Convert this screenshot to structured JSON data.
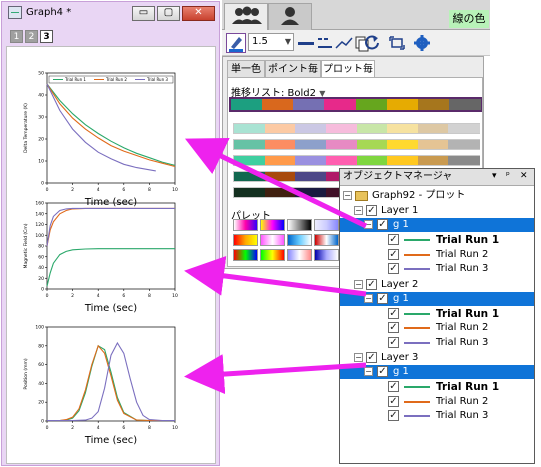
{
  "graph_window": {
    "title": "Graph4 *",
    "buttons": {
      "minimize": "▭",
      "maximize": "▢",
      "close": "✕"
    },
    "layer_tabs": [
      "1",
      "2",
      "3"
    ],
    "active_layer_tab": "3"
  },
  "chart_data": [
    {
      "type": "line",
      "title": "",
      "xlabel": "Time (sec)",
      "ylabel": "Delta Temperature (K)",
      "xlim": [
        0,
        10
      ],
      "ylim": [
        0,
        50
      ],
      "xticks": [
        "0",
        "2",
        "4",
        "6",
        "8",
        "10"
      ],
      "yticks": [
        "0",
        "10",
        "20",
        "30",
        "40",
        "50"
      ],
      "legend": {
        "position": "top",
        "entries": [
          "Trial Run 1",
          "Trial Run 2",
          "Trial Run 3"
        ]
      },
      "series": [
        {
          "name": "Trial Run 1",
          "color": "#2aa86a",
          "x": [
            0,
            1,
            2,
            3,
            4,
            5,
            6,
            7,
            8,
            9,
            10
          ],
          "values": [
            45,
            37.5,
            31.5,
            26.5,
            22.5,
            19,
            16,
            13.5,
            11.5,
            9.5,
            8
          ]
        },
        {
          "name": "Trial Run 2",
          "color": "#e06a1a",
          "x": [
            0,
            1,
            2,
            3,
            4,
            5,
            6,
            7,
            8,
            9,
            10
          ],
          "values": [
            45,
            36,
            29.5,
            24.5,
            20.5,
            17,
            14.5,
            12.5,
            10.5,
            9,
            7.5
          ]
        },
        {
          "name": "Trial Run 3",
          "color": "#7b6fbf",
          "x": [
            0,
            1,
            2,
            3,
            4,
            5,
            6,
            7,
            8,
            8.5
          ],
          "values": [
            45,
            33,
            24.5,
            18.5,
            14,
            11,
            8.5,
            7,
            6,
            5.5
          ]
        }
      ]
    },
    {
      "type": "line",
      "title": "",
      "xlabel": "Time (sec)",
      "ylabel": "Magnetic Field (Cm)",
      "xlim": [
        0,
        10
      ],
      "ylim": [
        0,
        160
      ],
      "xticks": [
        "0",
        "2",
        "4",
        "6",
        "8",
        "10"
      ],
      "yticks": [
        "0",
        "20",
        "40",
        "60",
        "80",
        "100",
        "120",
        "140",
        "160"
      ],
      "series": [
        {
          "name": "Trial Run 1",
          "color": "#2aa86a",
          "x": [
            0,
            0.25,
            0.5,
            1,
            1.5,
            2,
            3,
            4,
            6,
            8,
            10
          ],
          "values": [
            5,
            30,
            48,
            64,
            70,
            73,
            74.5,
            75,
            75,
            75,
            75
          ]
        },
        {
          "name": "Trial Run 2",
          "color": "#e06a1a",
          "x": [
            0,
            0.25,
            0.5,
            1,
            1.5,
            2,
            3,
            4,
            6,
            8,
            10
          ],
          "values": [
            80,
            110,
            125,
            140,
            146,
            149,
            150,
            150,
            150,
            150,
            150
          ]
        },
        {
          "name": "Trial Run 3",
          "color": "#7b6fbf",
          "x": [
            0,
            0.25,
            0.5,
            1,
            1.5,
            2,
            3,
            4,
            6,
            8,
            10
          ],
          "values": [
            80,
            118,
            135,
            146,
            149,
            150,
            150,
            150,
            150,
            150,
            150
          ]
        }
      ]
    },
    {
      "type": "line",
      "title": "",
      "xlabel": "Time (sec)",
      "ylabel": "Position (mm)",
      "xlim": [
        0,
        10
      ],
      "ylim": [
        0,
        100
      ],
      "xticks": [
        "0",
        "2",
        "4",
        "6",
        "8",
        "10"
      ],
      "yticks": [
        "0",
        "20",
        "40",
        "60",
        "80",
        "100"
      ],
      "series": [
        {
          "name": "Trial Run 1",
          "color": "#2aa86a",
          "x": [
            0,
            1,
            1.5,
            2,
            2.5,
            3,
            3.5,
            4,
            4.5,
            5,
            5.5,
            6,
            7,
            8,
            10
          ],
          "values": [
            0.5,
            0.5,
            1,
            3,
            11,
            30,
            58,
            80,
            76,
            52,
            25,
            9,
            1,
            0.5,
            0.5
          ]
        },
        {
          "name": "Trial Run 2",
          "color": "#e06a1a",
          "x": [
            0,
            1,
            1.5,
            2,
            2.5,
            3,
            3.5,
            4,
            4.5,
            5,
            5.5,
            6,
            7,
            8,
            10
          ],
          "values": [
            0.5,
            0.5,
            1.5,
            4,
            13,
            33,
            60,
            80,
            72,
            48,
            22,
            8,
            1,
            0.5,
            0.5
          ]
        },
        {
          "name": "Trial Run 3",
          "color": "#7b6fbf",
          "x": [
            0,
            2,
            3,
            3.5,
            4,
            4.5,
            5,
            5.5,
            6,
            6.5,
            7,
            7.5,
            8,
            9,
            10
          ],
          "values": [
            0.5,
            0.5,
            1,
            3,
            10,
            35,
            70,
            83,
            72,
            45,
            20,
            6,
            1.5,
            0.5,
            0.5
          ]
        }
      ]
    }
  ],
  "right_panel": {
    "line_color_label": "線の色",
    "line_width_value": "1.5",
    "subtabs": [
      "単一色",
      "ポイント毎",
      "プロット毎"
    ],
    "increment_label": "推移リスト: Bold2",
    "palette_label": "パレット",
    "increment_colors": [
      "#1c9f80",
      "#d9681d",
      "#7570b3",
      "#e7298a",
      "#66a61e",
      "#e6ab02",
      "#a6761d",
      "#666666"
    ],
    "color_rows": [
      [
        "#a9e3d3",
        "#fccaa4",
        "#cbc8e4",
        "#f6bcdc",
        "#c8e6a8",
        "#f6e2a0",
        "#ddc8a4",
        "#d2d2d2"
      ],
      [
        "#66c2a5",
        "#fc8d62",
        "#8da0cb",
        "#e78ac3",
        "#a6d854",
        "#ffd92f",
        "#e5c494",
        "#b3b3b3"
      ],
      [
        "#3fcfa0",
        "#ff9a4a",
        "#9a90e0",
        "#ff5fb0",
        "#7fd640",
        "#ffc820",
        "#c99a50",
        "#8a8a8a"
      ],
      [
        "#11684f",
        "#a84a0c",
        "#4d4787",
        "#b01a68",
        "#3f6e10",
        "#a07400",
        "#6e4a10",
        "#3a3a3a"
      ],
      [
        "#143020",
        "#402010",
        "#1a1a40",
        "#401028",
        "#203008",
        "#403010",
        "#302010",
        "#202020"
      ]
    ],
    "gradients": [
      [
        "#fff",
        "#f0a",
        "#30f"
      ],
      [
        "#ff0",
        "#f0f",
        "#00f"
      ],
      [
        "#fff",
        "#888",
        "#000"
      ],
      [
        "#eef",
        "#ccf",
        "#88f"
      ],
      [
        "#9cf",
        "#69c",
        "#358"
      ],
      [
        "#f00",
        "#fa0",
        "#ff0"
      ],
      [
        "#f5f",
        "#fff",
        "#f5f"
      ],
      [
        "#06c",
        "#6cf",
        "#fff"
      ],
      [
        "#c00",
        "#fff",
        "#06c"
      ],
      [
        "#444",
        "#ccc",
        "#444"
      ],
      [
        "#f00",
        "#0f0",
        "#00f"
      ],
      [
        "#0f0",
        "#ff0",
        "#f00"
      ],
      [
        "#88f",
        "#fff",
        "#f88"
      ],
      [
        "#00a",
        "#aaf",
        "#fff"
      ],
      [
        "#f80",
        "#ff8",
        "#8f8"
      ]
    ]
  },
  "object_manager": {
    "title": "オブジェクトマネージャ",
    "controls": [
      "▾",
      "ᵖ",
      "✕"
    ],
    "root": "Graph92 - プロット",
    "layers": [
      {
        "name": "Layer 1",
        "group": "g 1",
        "plots": [
          "Trial Run 1",
          "Trial Run 2",
          "Trial Run 3"
        ]
      },
      {
        "name": "Layer 2",
        "group": "g 1",
        "plots": [
          "Trial Run 1",
          "Trial Run 2",
          "Trial Run 3"
        ]
      },
      {
        "name": "Layer 3",
        "group": "g 1",
        "plots": [
          "Trial Run 1",
          "Trial Run 2",
          "Trial Run 3"
        ]
      }
    ],
    "plot_colors": [
      "#2aa86a",
      "#e06a1a",
      "#7b6fbf"
    ]
  }
}
